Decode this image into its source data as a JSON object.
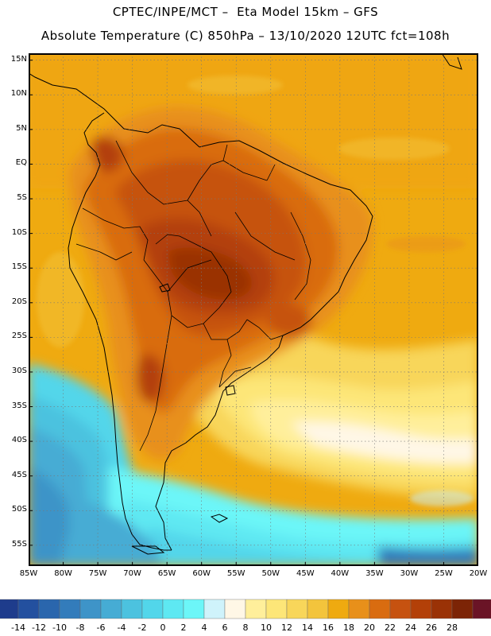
{
  "title_line1": "CPTEC/INPE/MCT –  Eta Model 15km – GFS",
  "title_line2": "Absolute Temperature (C) 850hPa – 13/10/2020 12UTC fct=108h",
  "map": {
    "projection": "lat-lon",
    "lon_range_deg": [
      -85,
      -20
    ],
    "lat_range_deg": [
      -58,
      16
    ],
    "region": "South America",
    "variable": "air temperature at 850 hPa",
    "unit": "C"
  },
  "lat_labels": [
    "15N",
    "10N",
    "5N",
    "EQ",
    "5S",
    "10S",
    "15S",
    "20S",
    "25S",
    "30S",
    "35S",
    "40S",
    "45S",
    "50S",
    "55S"
  ],
  "lat_values": [
    15,
    10,
    5,
    0,
    -5,
    -10,
    -15,
    -20,
    -25,
    -30,
    -35,
    -40,
    -45,
    -50,
    -55
  ],
  "lon_labels": [
    "85W",
    "80W",
    "75W",
    "70W",
    "65W",
    "60W",
    "55W",
    "50W",
    "45W",
    "40W",
    "35W",
    "30W",
    "25W",
    "20W"
  ],
  "lon_values": [
    -85,
    -80,
    -75,
    -70,
    -65,
    -60,
    -55,
    -50,
    -45,
    -40,
    -35,
    -30,
    -25,
    -20
  ],
  "colorbar": {
    "labels": [
      "-14",
      "-12",
      "-10",
      "-8",
      "-6",
      "-4",
      "-2",
      "0",
      "2",
      "4",
      "6",
      "8",
      "10",
      "12",
      "14",
      "16",
      "18",
      "20",
      "22",
      "24",
      "26",
      "28"
    ],
    "colors": [
      "#1e3c8c",
      "#23509f",
      "#2a66ad",
      "#337cbb",
      "#3e94c8",
      "#46acd4",
      "#4cc2df",
      "#52d6ea",
      "#5ee8f2",
      "#6cf6f8",
      "#cff3fb",
      "#fff7e6",
      "#ffef9b",
      "#fde678",
      "#f8d65a",
      "#f3c43c",
      "#efaa10",
      "#e8901a",
      "#d96c10",
      "#c65210",
      "#b34008",
      "#9a3206",
      "#7c2406",
      "#6a1426"
    ],
    "under_color": "#2a2f7a",
    "over_color": "#7a1030"
  }
}
